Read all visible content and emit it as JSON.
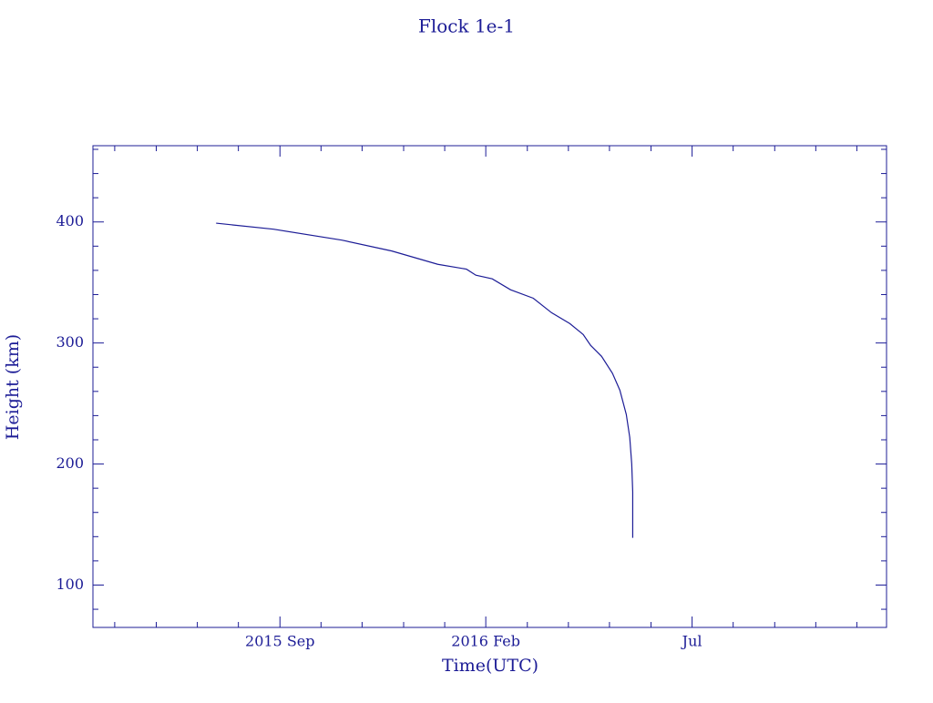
{
  "chart_data": {
    "type": "line",
    "title": "Flock 1e-1",
    "x_label": "Time(UTC)",
    "y_label": "Height (km)",
    "color": "#1c1c96",
    "x": [
      2015.538,
      2015.654,
      2015.792,
      2015.893,
      2015.986,
      2016.044,
      2016.063,
      2016.096,
      2016.133,
      2016.179,
      2016.216,
      2016.253,
      2016.28,
      2016.295,
      2016.317,
      2016.339,
      2016.354,
      2016.367,
      2016.374,
      2016.378,
      2016.38,
      2016.38
    ],
    "values": [
      399,
      394,
      385,
      376,
      365,
      361,
      356,
      353,
      344,
      337,
      325,
      316,
      307,
      298,
      289,
      275,
      261,
      241,
      222,
      200,
      177,
      139
    ],
    "xlim": [
      2015.289,
      2016.893
    ],
    "xticks": [
      {
        "value": 2015.667,
        "label": "2015 Sep"
      },
      {
        "value": 2016.083,
        "label": "2016 Feb"
      },
      {
        "value": 2016.5,
        "label": "Jul"
      }
    ],
    "xminorticks": [
      2015.333,
      2015.417,
      2015.5,
      2015.583,
      2015.75,
      2015.833,
      2015.917,
      2016.0,
      2016.167,
      2016.25,
      2016.333,
      2016.417,
      2016.583,
      2016.667,
      2016.75,
      2016.833
    ],
    "ylim": [
      65,
      463
    ],
    "yticks": [
      100,
      200,
      300,
      400
    ],
    "yminorticks": [
      80,
      120,
      140,
      160,
      180,
      220,
      240,
      260,
      280,
      320,
      340,
      360,
      380,
      420,
      440,
      460
    ]
  }
}
